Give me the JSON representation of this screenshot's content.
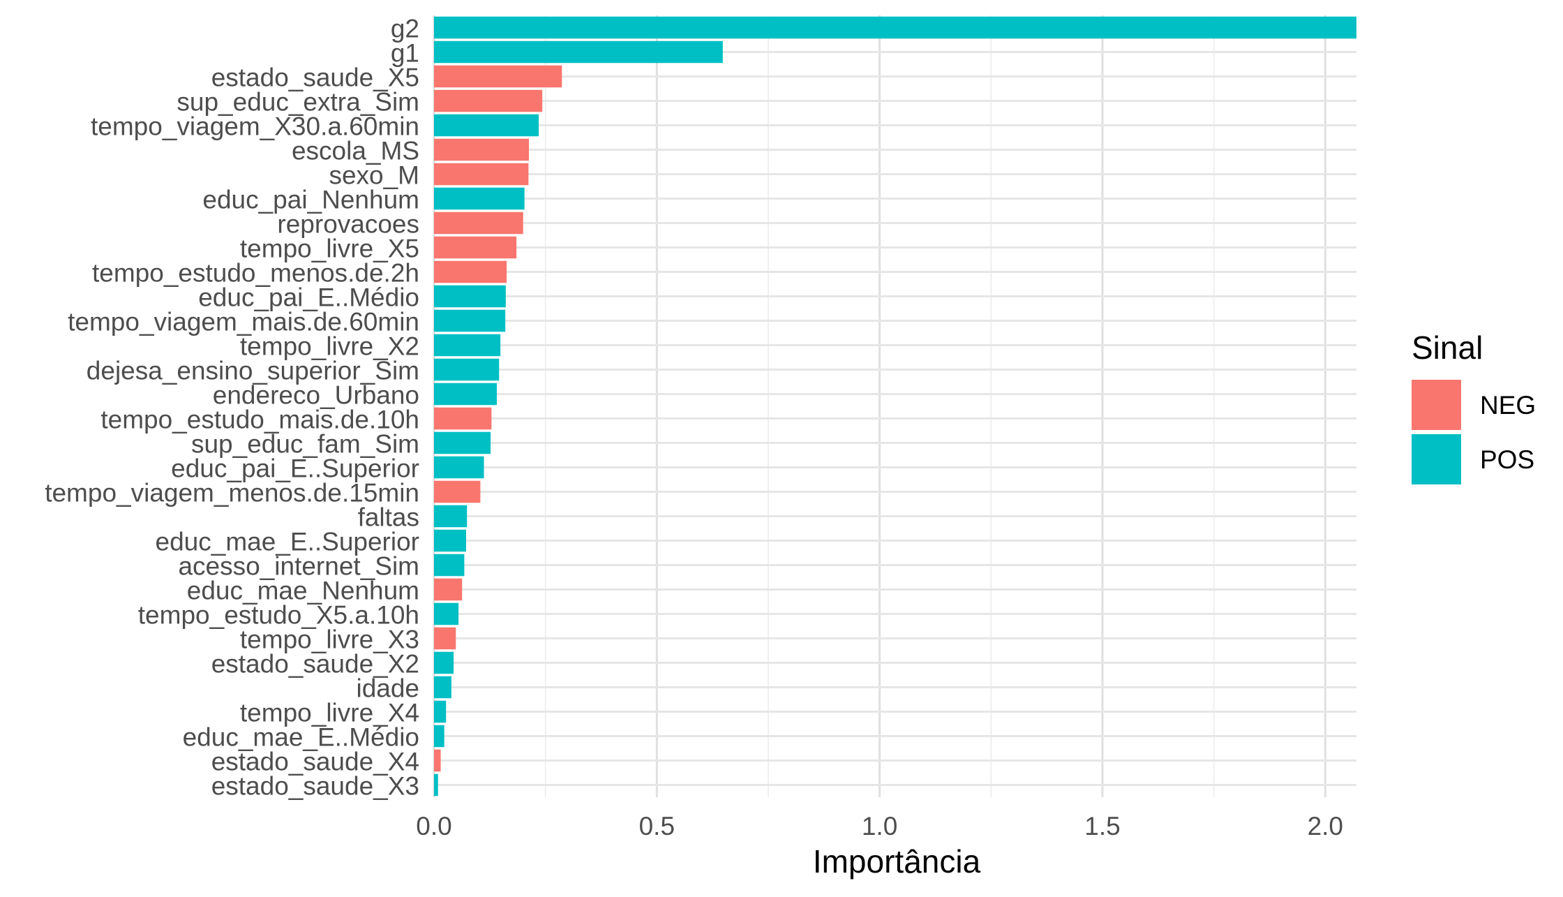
{
  "chart_data": {
    "type": "bar",
    "orientation": "horizontal",
    "xlabel": "Importância",
    "ylabel": "",
    "xlim": [
      0,
      2.07
    ],
    "xticks": [
      0.0,
      0.5,
      1.0,
      1.5,
      2.0
    ],
    "xtick_labels": [
      "0.0",
      "0.5",
      "1.0",
      "1.5",
      "2.0"
    ],
    "grid": true,
    "legend": {
      "title": "Sinal",
      "position": "right",
      "entries": [
        {
          "label": "NEG",
          "color": "#F8766D"
        },
        {
          "label": "POS",
          "color": "#00BFC4"
        }
      ]
    },
    "colors": {
      "NEG": "#F8766D",
      "POS": "#00BFC4"
    },
    "categories": [
      "g2",
      "g1",
      "estado_saude_X5",
      "sup_educ_extra_Sim",
      "tempo_viagem_X30.a.60min",
      "escola_MS",
      "sexo_M",
      "educ_pai_Nenhum",
      "reprovacoes",
      "tempo_livre_X5",
      "tempo_estudo_menos.de.2h",
      "educ_pai_E..Médio",
      "tempo_viagem_mais.de.60min",
      "tempo_livre_X2",
      "dejesa_ensino_superior_Sim",
      "endereco_Urbano",
      "tempo_estudo_mais.de.10h",
      "sup_educ_fam_Sim",
      "educ_pai_E..Superior",
      "tempo_viagem_menos.de.15min",
      "faltas",
      "educ_mae_E..Superior",
      "acesso_internet_Sim",
      "educ_mae_Nenhum",
      "tempo_estudo_X5.a.10h",
      "tempo_livre_X3",
      "estado_saude_X2",
      "idade",
      "tempo_livre_X4",
      "educ_mae_E..Médio",
      "estado_saude_X4",
      "estado_saude_X3"
    ],
    "values": [
      2.07,
      0.648,
      0.287,
      0.243,
      0.235,
      0.213,
      0.212,
      0.203,
      0.2,
      0.185,
      0.163,
      0.161,
      0.16,
      0.149,
      0.146,
      0.141,
      0.129,
      0.127,
      0.112,
      0.104,
      0.074,
      0.072,
      0.068,
      0.063,
      0.055,
      0.049,
      0.044,
      0.039,
      0.027,
      0.023,
      0.015,
      0.009
    ],
    "signs": [
      "POS",
      "POS",
      "NEG",
      "NEG",
      "POS",
      "NEG",
      "NEG",
      "POS",
      "NEG",
      "NEG",
      "NEG",
      "POS",
      "POS",
      "POS",
      "POS",
      "POS",
      "NEG",
      "POS",
      "POS",
      "NEG",
      "POS",
      "POS",
      "POS",
      "NEG",
      "POS",
      "NEG",
      "POS",
      "POS",
      "POS",
      "POS",
      "NEG",
      "POS"
    ]
  }
}
